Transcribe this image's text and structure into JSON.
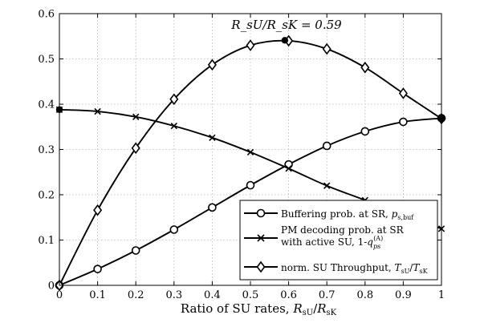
{
  "chart_data": {
    "type": "line",
    "xlabel": "Ratio of SU rates, R_sU/R_sK",
    "ylabel": "",
    "xlim": [
      0,
      1
    ],
    "ylim": [
      0,
      0.6
    ],
    "xticks": [
      "0",
      "0.1",
      "0.2",
      "0.3",
      "0.4",
      "0.5",
      "0.6",
      "0.7",
      "0.8",
      "0.9",
      "1"
    ],
    "yticks": [
      "0",
      "0.1",
      "0.2",
      "0.3",
      "0.4",
      "0.5",
      "0.6"
    ],
    "grid": true,
    "annotation": "R_sU/R_sK = 0.59",
    "legend_position": "bottom-right",
    "x": [
      0,
      0.1,
      0.2,
      0.3,
      0.4,
      0.5,
      0.6,
      0.7,
      0.8,
      0.9,
      1.0
    ],
    "series": [
      {
        "name": "Buffering prob. at SR, p_s,buf",
        "marker": "circle",
        "values": [
          0.0,
          0.036,
          0.077,
          0.123,
          0.172,
          0.221,
          0.267,
          0.308,
          0.34,
          0.361,
          0.369
        ]
      },
      {
        "name": "PM decoding prob. at SR with active SU, 1-q_ps^(A)",
        "marker": "x",
        "values": [
          0.388,
          0.384,
          0.372,
          0.352,
          0.326,
          0.294,
          0.258,
          0.22,
          0.188,
          0.155,
          0.125
        ]
      },
      {
        "name": "norm. SU Throughput, T_sU/T_sK",
        "marker": "diamond",
        "values": [
          0.0,
          0.166,
          0.303,
          0.411,
          0.487,
          0.53,
          0.54,
          0.522,
          0.481,
          0.424,
          0.368
        ]
      }
    ],
    "highlight_points": [
      {
        "x": 0,
        "y": 0.388
      },
      {
        "x": 0.59,
        "y": 0.541
      },
      {
        "x": 1.0,
        "y": 0.368
      }
    ]
  }
}
